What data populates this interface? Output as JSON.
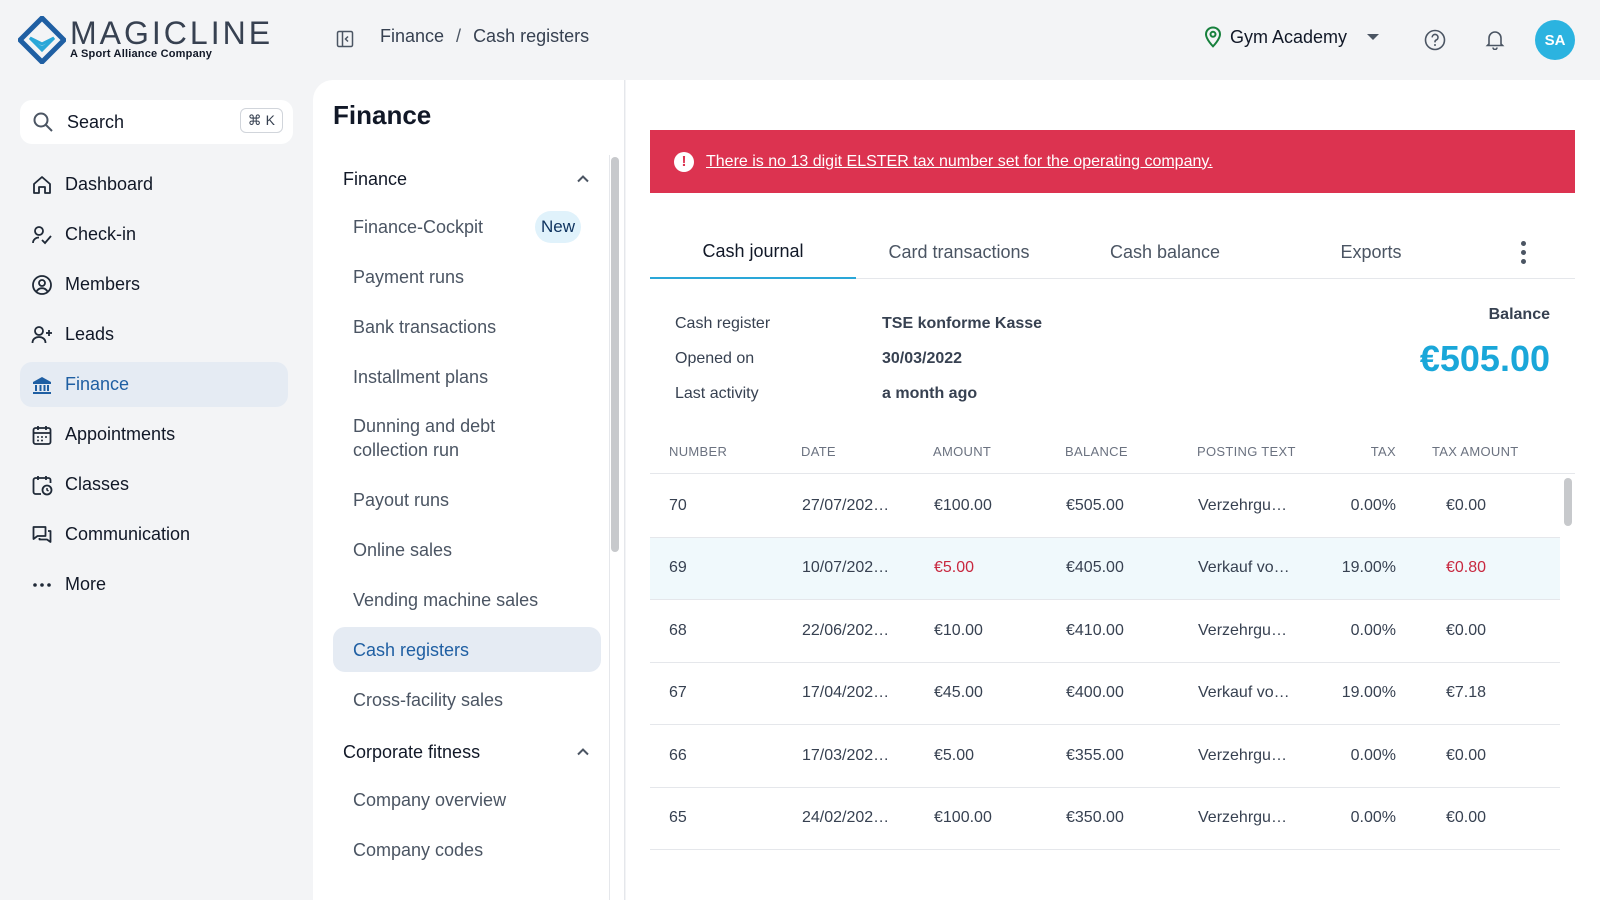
{
  "brand": {
    "name": "MAGICLINE",
    "subtitle": "A Sport Alliance Company"
  },
  "breadcrumb": [
    "Finance",
    "Cash registers"
  ],
  "breadcrumb_sep": "/",
  "facility": "Gym Academy",
  "user_initials": "SA",
  "search": {
    "label": "Search",
    "shortcut": "⌘ K"
  },
  "nav": [
    {
      "label": "Dashboard",
      "icon": "home-icon"
    },
    {
      "label": "Check-in",
      "icon": "check-in-icon"
    },
    {
      "label": "Members",
      "icon": "user-circle-icon"
    },
    {
      "label": "Leads",
      "icon": "user-plus-icon"
    },
    {
      "label": "Finance",
      "icon": "bank-icon"
    },
    {
      "label": "Appointments",
      "icon": "calendar-icon"
    },
    {
      "label": "Classes",
      "icon": "calendar-clock-icon"
    },
    {
      "label": "Communication",
      "icon": "chat-icon"
    },
    {
      "label": "More",
      "icon": "more-dots-icon"
    }
  ],
  "subpanel": {
    "title": "Finance",
    "group1": "Finance",
    "items": [
      {
        "label": "Finance-Cockpit",
        "badge": "New"
      },
      {
        "label": "Payment runs"
      },
      {
        "label": "Bank transactions"
      },
      {
        "label": "Installment plans"
      },
      {
        "label": "Dunning and debt collection run"
      },
      {
        "label": "Payout runs"
      },
      {
        "label": "Online sales"
      },
      {
        "label": "Vending machine sales"
      },
      {
        "label": "Cash registers"
      },
      {
        "label": "Cross-facility sales"
      }
    ],
    "group2": "Corporate fitness",
    "items2": [
      {
        "label": "Company overview"
      },
      {
        "label": "Company codes"
      }
    ]
  },
  "alert": "There is no 13 digit ELSTER tax number set for the operating company.",
  "tabs": [
    "Cash journal",
    "Card transactions",
    "Cash balance",
    "Exports"
  ],
  "register": {
    "labels": [
      "Cash register",
      "Opened on",
      "Last activity"
    ],
    "values": [
      "TSE konforme Kasse",
      "30/03/2022",
      "a month ago"
    ],
    "balance_label": "Balance",
    "balance": "€505.00"
  },
  "table": {
    "headers": [
      "NUMBER",
      "DATE",
      "AMOUNT",
      "BALANCE",
      "POSTING TEXT",
      "TAX",
      "TAX AMOUNT"
    ],
    "rows": [
      [
        "70",
        "27/07/202…",
        "€100.00",
        "€505.00",
        "Verzehrgu…",
        "0.00%",
        "€0.00"
      ],
      [
        "69",
        "10/07/202…",
        "€5.00",
        "€405.00",
        "Verkauf vo…",
        "19.00%",
        "€0.80"
      ],
      [
        "68",
        "22/06/202…",
        "€10.00",
        "€410.00",
        "Verzehrgu…",
        "0.00%",
        "€0.00"
      ],
      [
        "67",
        "17/04/202…",
        "€45.00",
        "€400.00",
        "Verkauf vo…",
        "19.00%",
        "€7.18"
      ],
      [
        "66",
        "17/03/202…",
        "€5.00",
        "€355.00",
        "Verzehrgu…",
        "0.00%",
        "€0.00"
      ],
      [
        "65",
        "24/02/202…",
        "€100.00",
        "€350.00",
        "Verzehrgu…",
        "0.00%",
        "€0.00"
      ]
    ]
  },
  "colors": {
    "accent": "#1aa7d9",
    "alert": "#dc3350",
    "active_nav": "#1f5fa3",
    "negative": "#c8283f"
  }
}
